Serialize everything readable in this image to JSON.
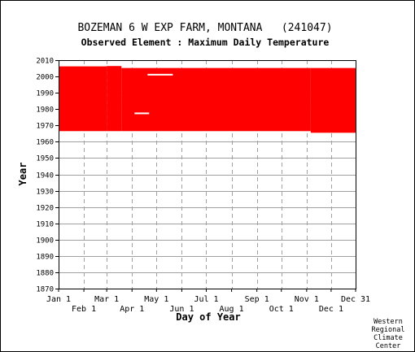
{
  "chart_data": {
    "type": "heatmap",
    "title": "BOZEMAN 6 W EXP FARM, MONTANA   (241047)",
    "subtitle": "Observed Element : Maximum Daily Temperature",
    "xlabel": "Day of Year",
    "ylabel": "Year",
    "credit": [
      "Western",
      "Regional",
      "Climate",
      "Center"
    ],
    "x_range_days": [
      1,
      365
    ],
    "ylim": [
      1870,
      2010
    ],
    "y_ticks": [
      1870,
      1880,
      1890,
      1900,
      1910,
      1920,
      1930,
      1940,
      1950,
      1960,
      1970,
      1980,
      1990,
      2000,
      2010
    ],
    "x_ticks_upper": [
      {
        "label": "Jan 1",
        "day": 1
      },
      {
        "label": "Mar 1",
        "day": 60
      },
      {
        "label": "May 1",
        "day": 121
      },
      {
        "label": "Jul 1",
        "day": 182
      },
      {
        "label": "Sep 1",
        "day": 244
      },
      {
        "label": "Nov 1",
        "day": 305
      },
      {
        "label": "Dec 31",
        "day": 365
      }
    ],
    "x_ticks_lower": [
      {
        "label": "Feb 1",
        "day": 32
      },
      {
        "label": "Apr 1",
        "day": 91
      },
      {
        "label": "Jun 1",
        "day": 152
      },
      {
        "label": "Aug 1",
        "day": 213
      },
      {
        "label": "Oct 1",
        "day": 274
      },
      {
        "label": "Dec 1",
        "day": 335
      }
    ],
    "grid": true,
    "series": [
      {
        "color": "#ff0000",
        "available_periods": [
          {
            "day_start": 1,
            "day_end": 60,
            "year_start": 1966.5,
            "year_end": 2006.2
          },
          {
            "day_start": 60,
            "day_end": 78,
            "year_start": 1966.5,
            "year_end": 2006.4
          },
          {
            "day_start": 78,
            "day_end": 310,
            "year_start": 1966.5,
            "year_end": 2005.2
          },
          {
            "day_start": 310,
            "day_end": 365,
            "year_start": 1965.5,
            "year_end": 2005.2
          }
        ],
        "missing_periods": [
          {
            "day_start": 110,
            "day_end": 141,
            "year_start": 2001.1,
            "year_end": 2001.6
          },
          {
            "day_start": 94,
            "day_end": 112,
            "year_start": 1977.4,
            "year_end": 1977.9
          }
        ]
      }
    ]
  }
}
